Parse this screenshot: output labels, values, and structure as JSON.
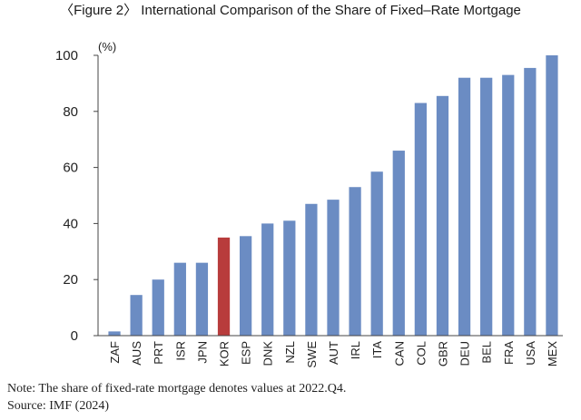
{
  "figure": {
    "title": "〈Figure 2〉 International Comparison of the Share of Fixed–Rate Mortgage",
    "note": "Note: The share of fixed-rate mortgage denotes values at 2022.Q4.",
    "source": "Source: IMF (2024)"
  },
  "chart_data": {
    "type": "bar",
    "title": "〈Figure 2〉 International Comparison of the Share of Fixed–Rate Mortgage",
    "ylabel": "(%)",
    "xlabel": "",
    "ylim": [
      0,
      100
    ],
    "yticks": [
      0,
      20,
      40,
      60,
      80,
      100
    ],
    "grid": false,
    "categories": [
      "ZAF",
      "AUS",
      "PRT",
      "ISR",
      "JPN",
      "KOR",
      "ESP",
      "DNK",
      "NZL",
      "SWE",
      "AUT",
      "IRL",
      "ITA",
      "CAN",
      "COL",
      "GBR",
      "DEU",
      "BEL",
      "FRA",
      "USA",
      "MEX"
    ],
    "values": [
      1.5,
      14.5,
      20,
      26,
      26,
      35,
      35.5,
      40,
      41,
      47,
      48.5,
      53,
      58.5,
      66,
      83,
      85.5,
      92,
      92,
      93,
      95.5,
      100
    ],
    "colors": {
      "default": "#6b8cc3",
      "highlight": "#b83c3c",
      "axis": "#444444"
    },
    "highlight_category": "KOR"
  }
}
